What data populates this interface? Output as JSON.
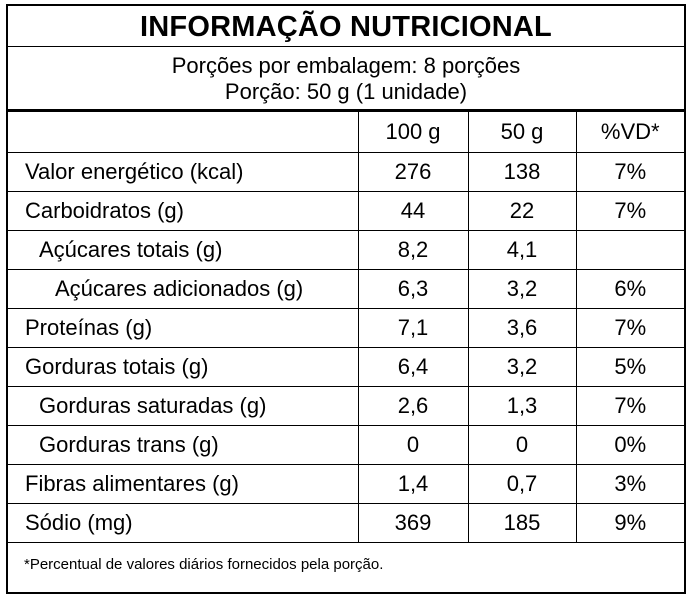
{
  "title": "INFORMAÇÃO NUTRICIONAL",
  "servings_per_package": "Porções por embalagem: 8 porções",
  "serving_size": "Porção: 50 g (1 unidade)",
  "columns": [
    "100 g",
    "50 g",
    "%VD*"
  ],
  "rows": [
    {
      "name": "Valor energético (kcal)",
      "level": 0,
      "per_100g": "276",
      "per_serving": "138",
      "dv": "7%"
    },
    {
      "name": "Carboidratos (g)",
      "level": 0,
      "per_100g": "44",
      "per_serving": "22",
      "dv": "7%"
    },
    {
      "name": "Açúcares totais (g)",
      "level": 1,
      "per_100g": "8,2",
      "per_serving": "4,1",
      "dv": ""
    },
    {
      "name": "Açúcares adicionados (g)",
      "level": 2,
      "per_100g": "6,3",
      "per_serving": "3,2",
      "dv": "6%"
    },
    {
      "name": "Proteínas (g)",
      "level": 0,
      "per_100g": "7,1",
      "per_serving": "3,6",
      "dv": "7%"
    },
    {
      "name": "Gorduras totais (g)",
      "level": 0,
      "per_100g": "6,4",
      "per_serving": "3,2",
      "dv": "5%"
    },
    {
      "name": "Gorduras saturadas (g)",
      "level": 1,
      "per_100g": "2,6",
      "per_serving": "1,3",
      "dv": "7%"
    },
    {
      "name": "Gorduras trans (g)",
      "level": 1,
      "per_100g": "0",
      "per_serving": "0",
      "dv": "0%"
    },
    {
      "name": "Fibras alimentares (g)",
      "level": 0,
      "per_100g": "1,4",
      "per_serving": "0,7",
      "dv": "3%"
    },
    {
      "name": "Sódio (mg)",
      "level": 0,
      "per_100g": "369",
      "per_serving": "185",
      "dv": "9%"
    }
  ],
  "footnote": "*Percentual de valores diários fornecidos pela porção."
}
